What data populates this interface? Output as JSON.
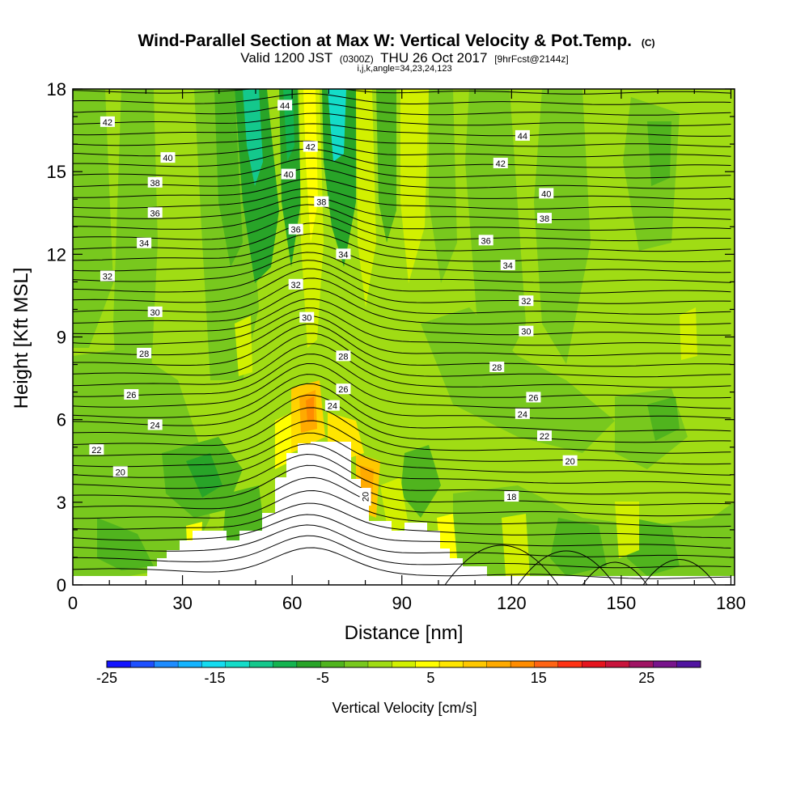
{
  "chart_data": {
    "type": "heatmap",
    "title": "Wind-Parallel Section at Max W: Vertical Velocity & Pot.Temp.",
    "title_mark": "(C)",
    "subtitle_parts": [
      "Valid 1200 JST",
      "(0300Z)",
      "THU 26 Oct 2017",
      "[9hrFcst@2144z]"
    ],
    "subtitle2": "i,j,k,angle=34,23,24,123",
    "xlabel": "Distance [nm]",
    "ylabel": "Height [Kft MSL]",
    "xlim": [
      0,
      181
    ],
    "ylim": [
      0,
      18
    ],
    "xticks": [
      "0",
      "30",
      "60",
      "90",
      "120",
      "150",
      "180"
    ],
    "yticks": [
      "0",
      "3",
      "6",
      "9",
      "12",
      "15",
      "18"
    ],
    "colorbar": {
      "label": "Vertical Velocity [cm/s]",
      "range": [
        -25,
        30
      ],
      "tick_labels": [
        "-25",
        "-15",
        "-5",
        "5",
        "15",
        "25"
      ],
      "colors": [
        "#1414ff",
        "#1e50ff",
        "#1e8cff",
        "#14b4ff",
        "#14dcf0",
        "#14dcc8",
        "#14c88c",
        "#14b450",
        "#28a428",
        "#50b41e",
        "#78c81e",
        "#a0dc14",
        "#d2f000",
        "#ffff00",
        "#ffe600",
        "#ffc800",
        "#ffaa00",
        "#ff8c00",
        "#ff6414",
        "#ff3214",
        "#e6141e",
        "#c8143c",
        "#a01464",
        "#78148c",
        "#5014a0"
      ]
    },
    "contour_labels": [
      {
        "text": "44",
        "x": 58,
        "y": 17.4
      },
      {
        "text": "42",
        "x": 9.5,
        "y": 16.8
      },
      {
        "text": "42",
        "x": 65,
        "y": 15.9
      },
      {
        "text": "44",
        "x": 123,
        "y": 16.3
      },
      {
        "text": "40",
        "x": 26,
        "y": 15.5
      },
      {
        "text": "42",
        "x": 117,
        "y": 15.3
      },
      {
        "text": "40",
        "x": 59,
        "y": 14.9
      },
      {
        "text": "38",
        "x": 22.5,
        "y": 14.6
      },
      {
        "text": "40",
        "x": 129.5,
        "y": 14.2
      },
      {
        "text": "38",
        "x": 68,
        "y": 13.9
      },
      {
        "text": "36",
        "x": 22.5,
        "y": 13.5
      },
      {
        "text": "38",
        "x": 129,
        "y": 13.3
      },
      {
        "text": "36",
        "x": 61,
        "y": 12.9
      },
      {
        "text": "36",
        "x": 113,
        "y": 12.5
      },
      {
        "text": "34",
        "x": 19.5,
        "y": 12.4
      },
      {
        "text": "34",
        "x": 74,
        "y": 12.0
      },
      {
        "text": "34",
        "x": 119,
        "y": 11.6
      },
      {
        "text": "32",
        "x": 9.5,
        "y": 11.2
      },
      {
        "text": "32",
        "x": 61,
        "y": 10.9
      },
      {
        "text": "32",
        "x": 124,
        "y": 10.3
      },
      {
        "text": "30",
        "x": 22.5,
        "y": 9.9
      },
      {
        "text": "30",
        "x": 64,
        "y": 9.7
      },
      {
        "text": "30",
        "x": 124,
        "y": 9.2
      },
      {
        "text": "28",
        "x": 19.5,
        "y": 8.4
      },
      {
        "text": "28",
        "x": 74,
        "y": 8.3
      },
      {
        "text": "28",
        "x": 116,
        "y": 7.9
      },
      {
        "text": "26",
        "x": 16,
        "y": 6.9
      },
      {
        "text": "26",
        "x": 74,
        "y": 7.1
      },
      {
        "text": "26",
        "x": 126,
        "y": 6.8
      },
      {
        "text": "24",
        "x": 71,
        "y": 6.5
      },
      {
        "text": "24",
        "x": 22.5,
        "y": 5.8
      },
      {
        "text": "24",
        "x": 123,
        "y": 6.2
      },
      {
        "text": "22",
        "x": 6.5,
        "y": 4.9
      },
      {
        "text": "22",
        "x": 129,
        "y": 5.4
      },
      {
        "text": "20",
        "x": 13,
        "y": 4.1
      },
      {
        "text": "20",
        "x": 136,
        "y": 4.5
      },
      {
        "text": "20",
        "x": 80,
        "y": 3.2
      },
      {
        "text": "18",
        "x": 120,
        "y": 3.2
      }
    ]
  }
}
